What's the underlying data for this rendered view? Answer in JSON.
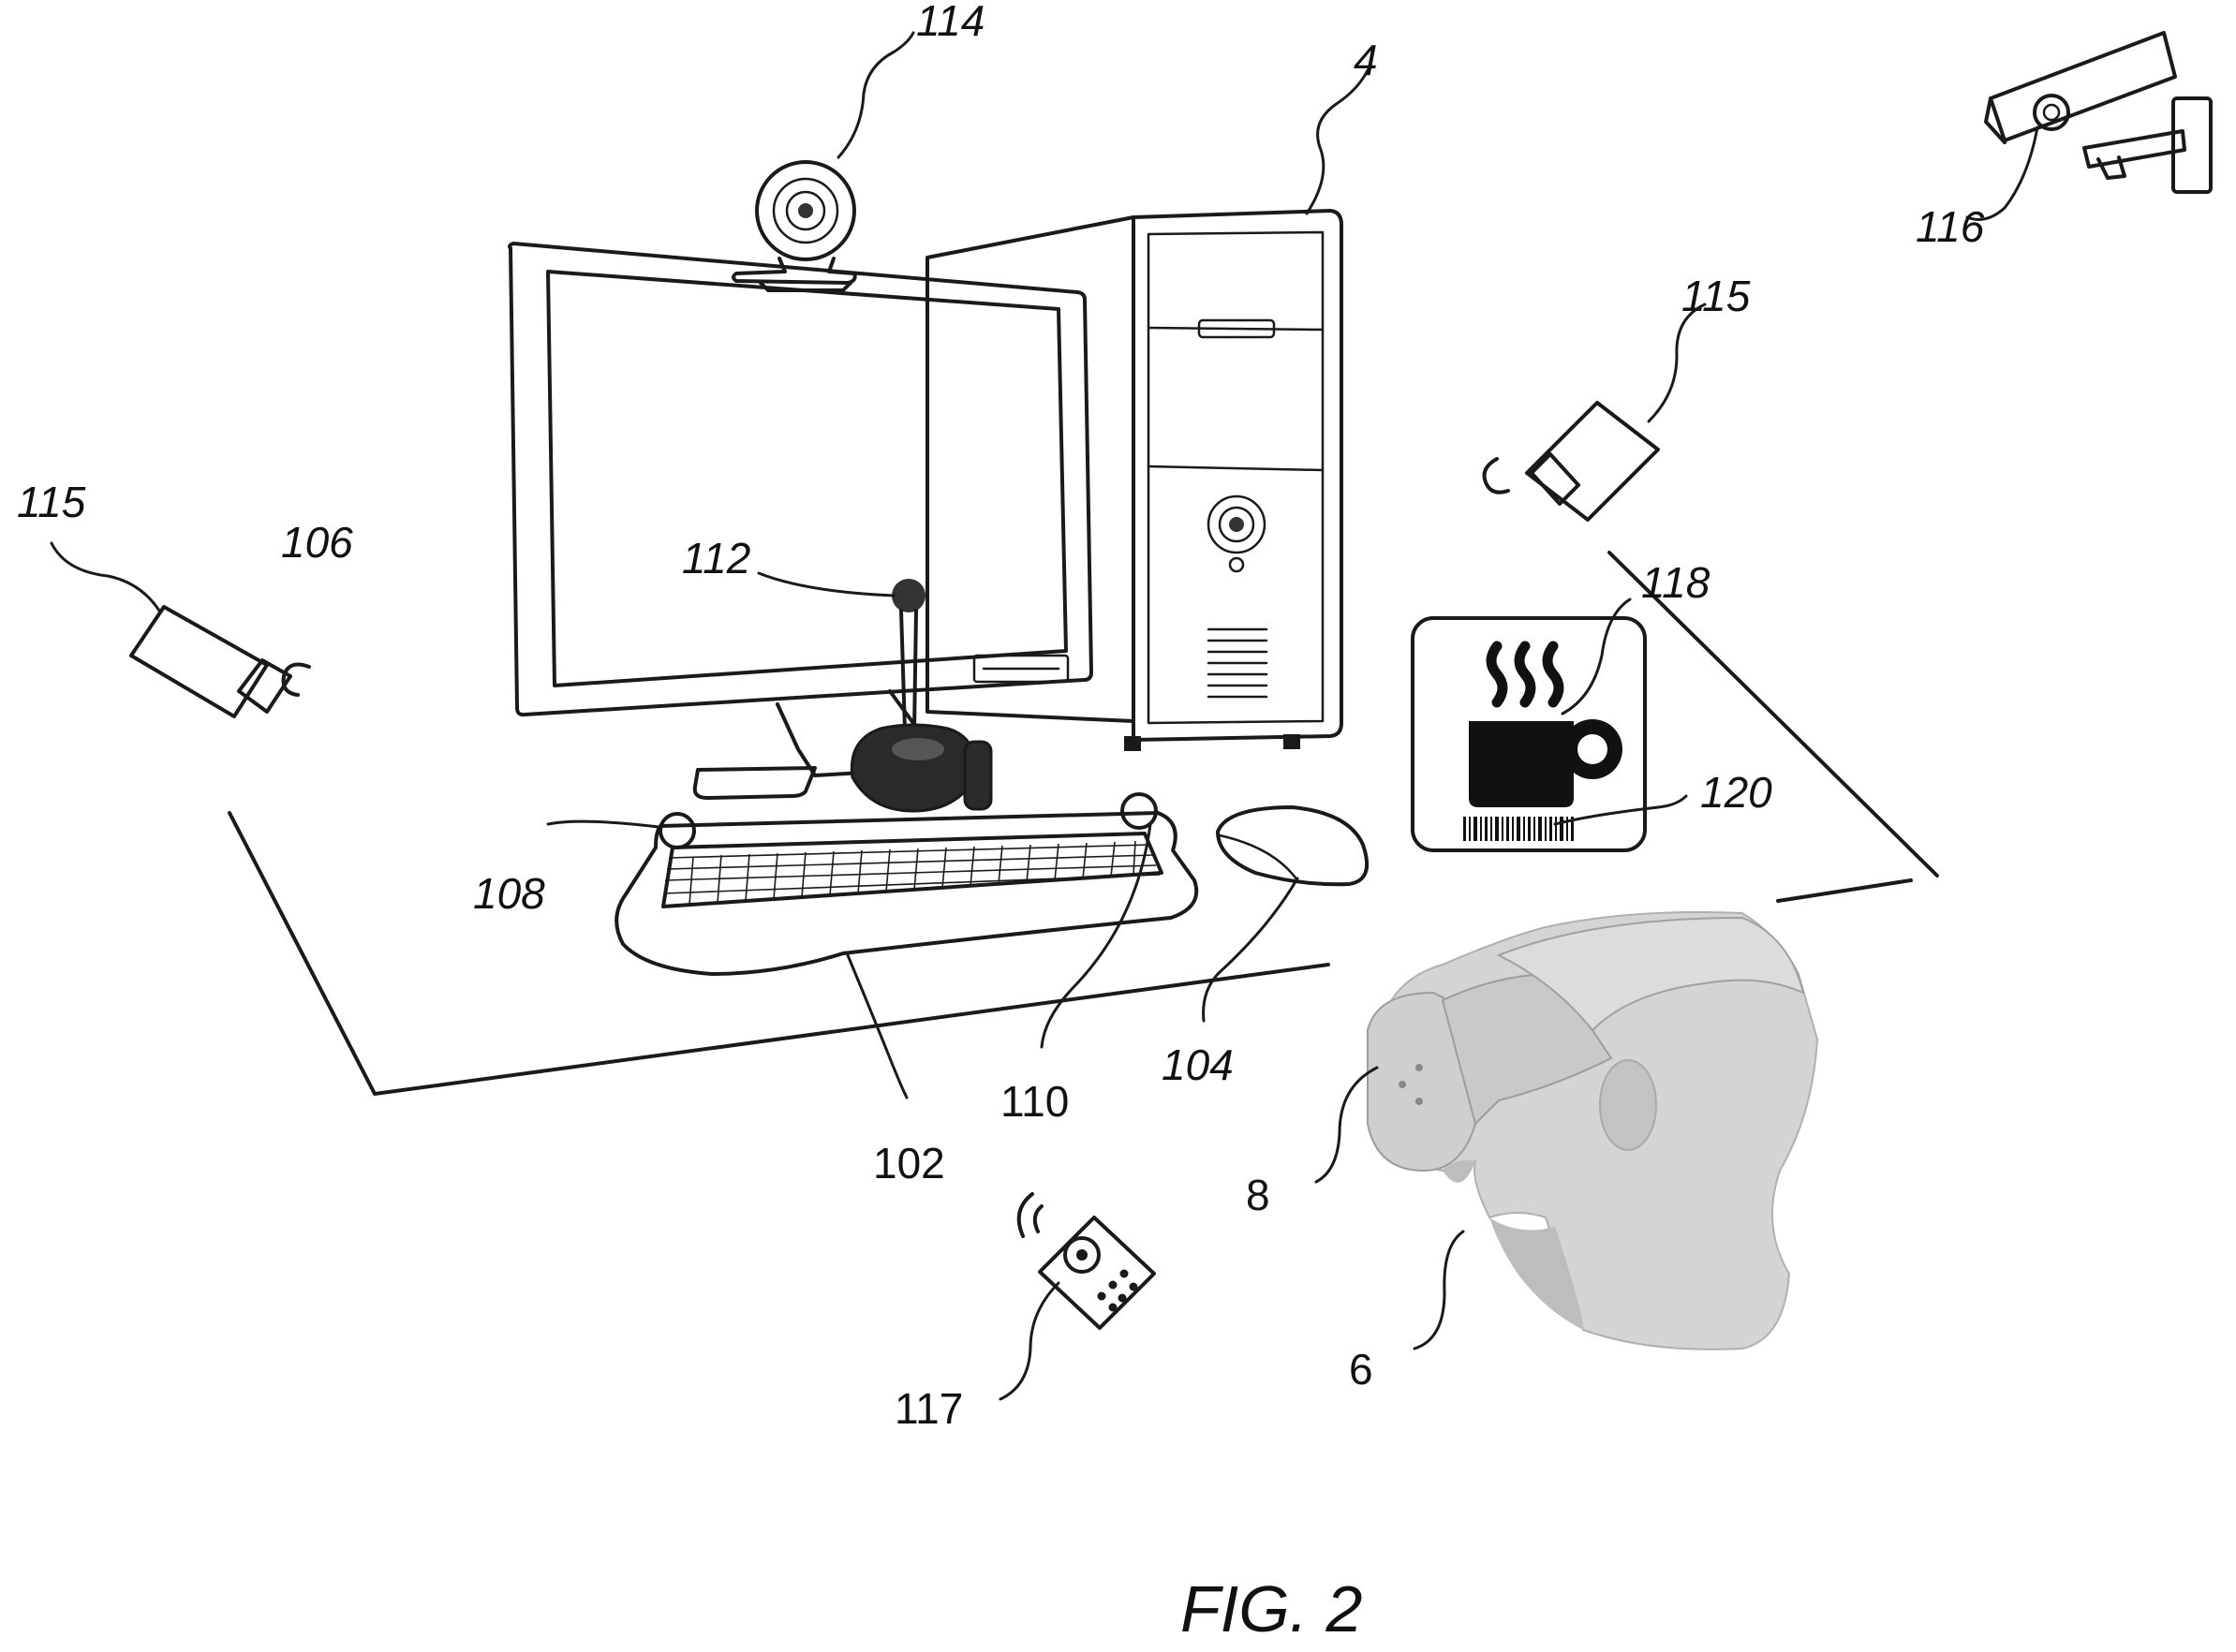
{
  "figure": {
    "caption": "FIG. 2",
    "labels": {
      "computer": "4",
      "user": "6",
      "headset": "8",
      "keyboard": "102",
      "mouse": "104",
      "monitor": "106",
      "key_sensor_left": "108",
      "key_sensor_right": "110",
      "joystick": "112",
      "webcam": "114",
      "camera_left": "115",
      "camera_right": "115",
      "security_camera": "116",
      "remote": "117",
      "mug_marker": "118",
      "barcode": "120"
    }
  }
}
